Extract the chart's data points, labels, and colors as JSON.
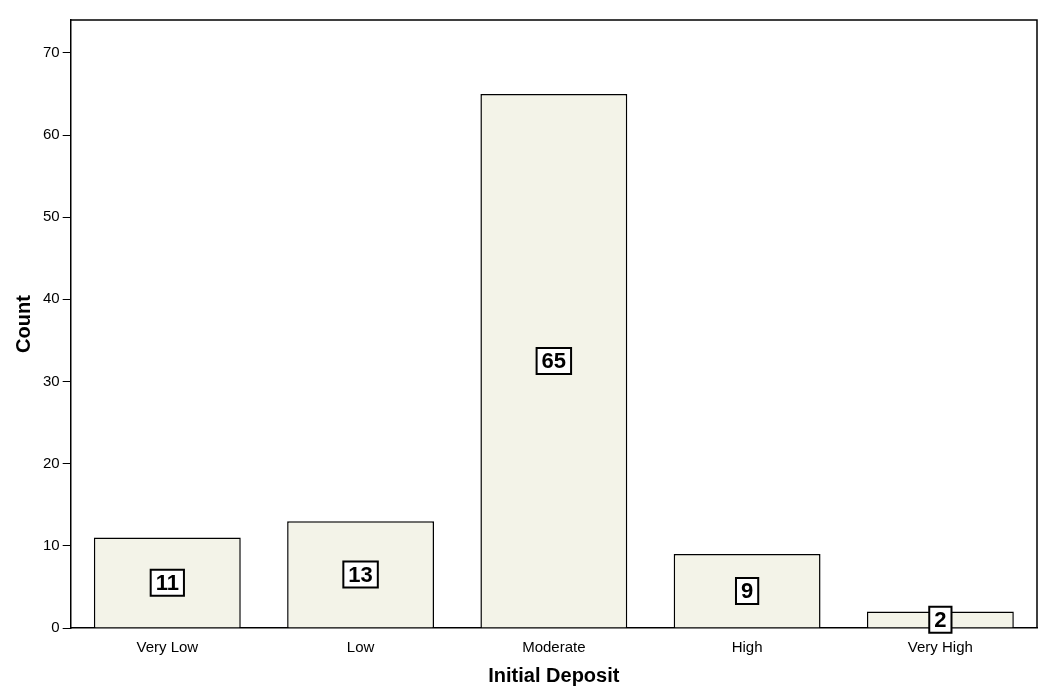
{
  "chart_data": {
    "type": "bar",
    "xlabel": "Initial Deposit",
    "ylabel": "Count",
    "categories": [
      "Very Low",
      "Low",
      "Moderate",
      "High",
      "Very High"
    ],
    "values": [
      11,
      13,
      65,
      9,
      2
    ],
    "color": "#f3f3e8",
    "ylim": [
      0,
      74
    ],
    "yticks": [
      0,
      10,
      20,
      30,
      40,
      50,
      60,
      70
    ],
    "grid": false,
    "legend": false,
    "data_labels": true
  }
}
